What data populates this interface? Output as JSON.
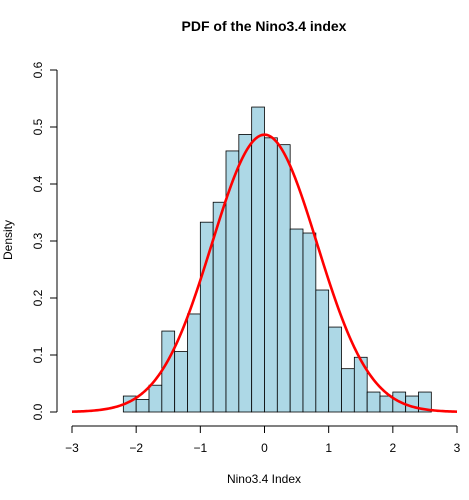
{
  "colors": {
    "bar_fill": "#add8e6",
    "bar_stroke": "#000000",
    "curve": "#ff0000",
    "axis": "#000000",
    "background": "#ffffff"
  },
  "chart_data": {
    "type": "bar",
    "subtype": "histogram-with-density-curve",
    "title": "PDF of the Nino3.4 index",
    "xlabel": "Nino3.4 Index",
    "ylabel": "Density",
    "xlim": [
      -3,
      3
    ],
    "ylim": [
      0,
      0.6
    ],
    "x_ticks": [
      "-3",
      "-2",
      "-1",
      "0",
      "1",
      "2",
      "3"
    ],
    "y_ticks": [
      "0.0",
      "0.1",
      "0.2",
      "0.3",
      "0.4",
      "0.5",
      "0.6"
    ],
    "grid": false,
    "bin_width": 0.2,
    "bins": [
      {
        "x0": -2.2,
        "x1": -2.0,
        "density": 0.028
      },
      {
        "x0": -2.0,
        "x1": -1.8,
        "density": 0.022
      },
      {
        "x0": -1.8,
        "x1": -1.6,
        "density": 0.047
      },
      {
        "x0": -1.6,
        "x1": -1.4,
        "density": 0.142
      },
      {
        "x0": -1.4,
        "x1": -1.2,
        "density": 0.106
      },
      {
        "x0": -1.2,
        "x1": -1.0,
        "density": 0.172
      },
      {
        "x0": -1.0,
        "x1": -0.8,
        "density": 0.333
      },
      {
        "x0": -0.8,
        "x1": -0.6,
        "density": 0.368
      },
      {
        "x0": -0.6,
        "x1": -0.4,
        "density": 0.458
      },
      {
        "x0": -0.4,
        "x1": -0.2,
        "density": 0.487
      },
      {
        "x0": -0.2,
        "x1": 0.0,
        "density": 0.535
      },
      {
        "x0": 0.0,
        "x1": 0.2,
        "density": 0.481
      },
      {
        "x0": 0.2,
        "x1": 0.4,
        "density": 0.469
      },
      {
        "x0": 0.4,
        "x1": 0.6,
        "density": 0.321
      },
      {
        "x0": 0.6,
        "x1": 0.8,
        "density": 0.314
      },
      {
        "x0": 0.8,
        "x1": 1.0,
        "density": 0.214
      },
      {
        "x0": 1.0,
        "x1": 1.2,
        "density": 0.149
      },
      {
        "x0": 1.2,
        "x1": 1.4,
        "density": 0.076
      },
      {
        "x0": 1.4,
        "x1": 1.6,
        "density": 0.096
      },
      {
        "x0": 1.6,
        "x1": 1.8,
        "density": 0.035
      },
      {
        "x0": 1.8,
        "x1": 2.0,
        "density": 0.028
      },
      {
        "x0": 2.0,
        "x1": 2.2,
        "density": 0.035
      },
      {
        "x0": 2.2,
        "x1": 2.4,
        "density": 0.028
      },
      {
        "x0": 2.4,
        "x1": 2.6,
        "density": 0.035
      }
    ],
    "series": [
      {
        "type": "line",
        "distribution": "normal",
        "mean": 0.0,
        "sd": 0.82,
        "x_range": [
          -3,
          3
        ],
        "color": "#ff0000"
      }
    ]
  }
}
